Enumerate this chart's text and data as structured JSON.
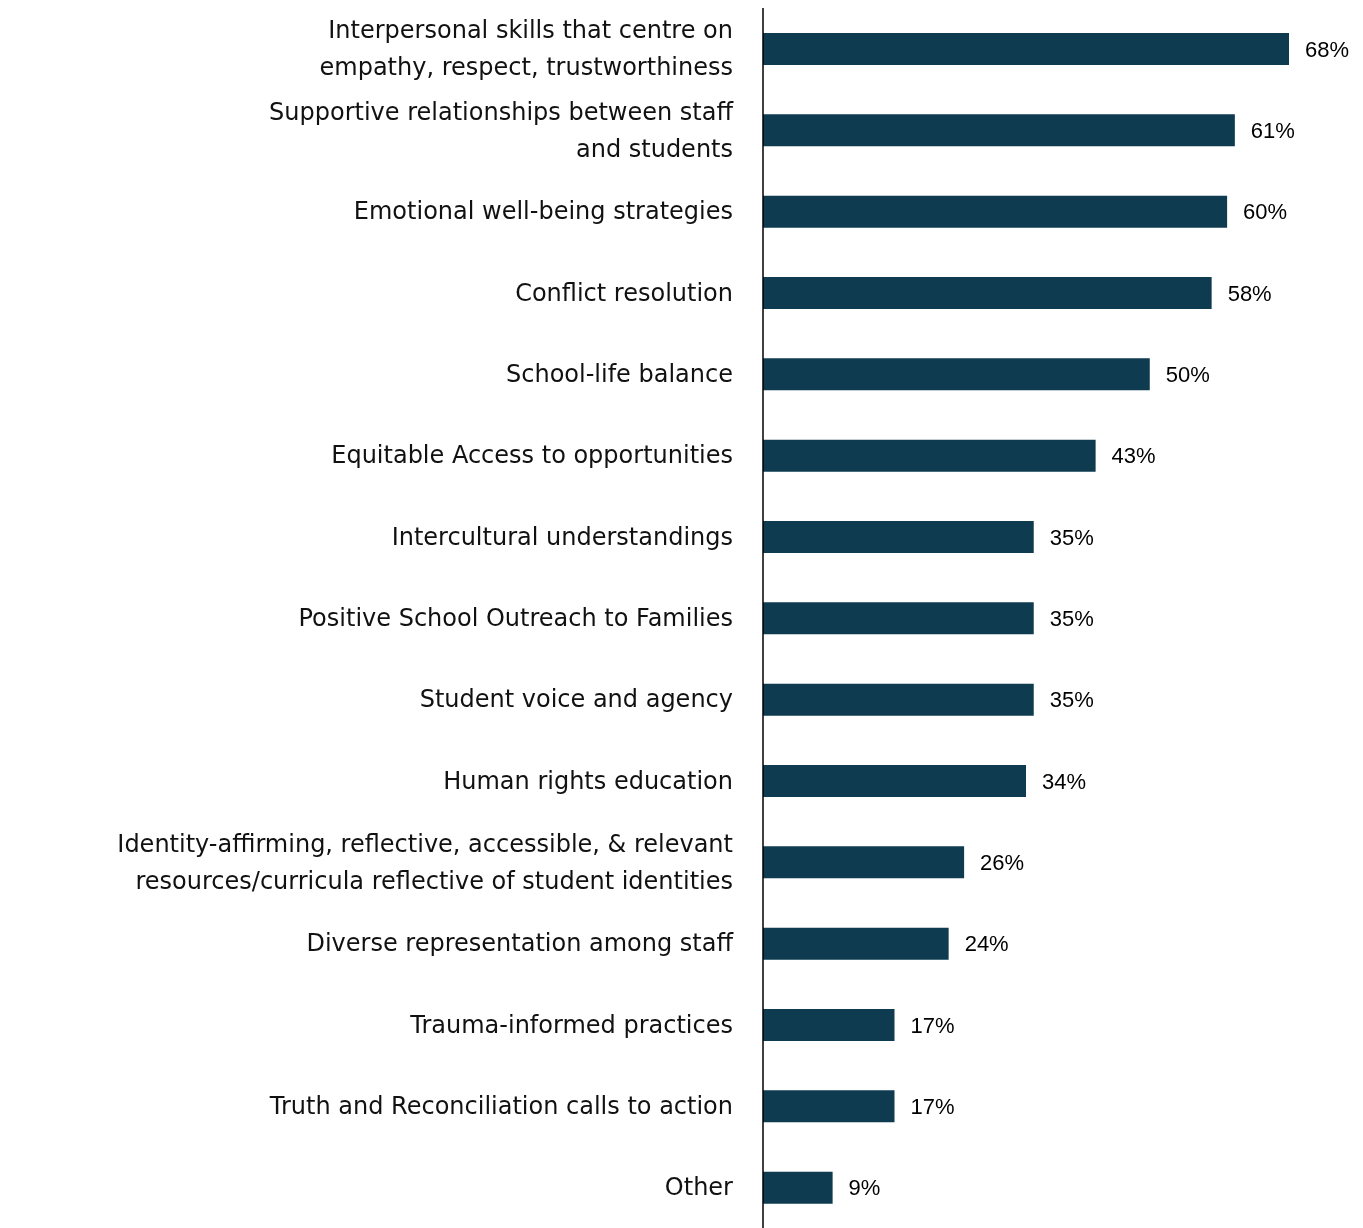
{
  "chart_data": {
    "type": "bar",
    "orientation": "horizontal",
    "color": "#0f3b50",
    "categories": [
      "Interpersonal skills that centre on\nempathy, respect, trustworthiness",
      "Supportive relationships between staff\nand students",
      "Emotional well-being strategies",
      "Conflict resolution",
      "School-life balance",
      "Equitable Access to opportunities",
      "Intercultural understandings",
      "Positive School Outreach to Families",
      "Student voice and agency",
      "Human rights education",
      "Identity-affirming, reflective, accessible, & relevant\nresources/curricula reflective of student identities",
      "Diverse representation among staff",
      "Trauma-informed practices",
      "Truth and Reconciliation calls to action",
      "Other"
    ],
    "values": [
      68,
      61,
      60,
      58,
      50,
      43,
      35,
      35,
      35,
      34,
      26,
      24,
      17,
      17,
      9
    ],
    "value_labels": [
      "68%",
      "61%",
      "60%",
      "58%",
      "50%",
      "43%",
      "35%",
      "35%",
      "35%",
      "34%",
      "26%",
      "24%",
      "17%",
      "17%",
      "9%"
    ]
  }
}
